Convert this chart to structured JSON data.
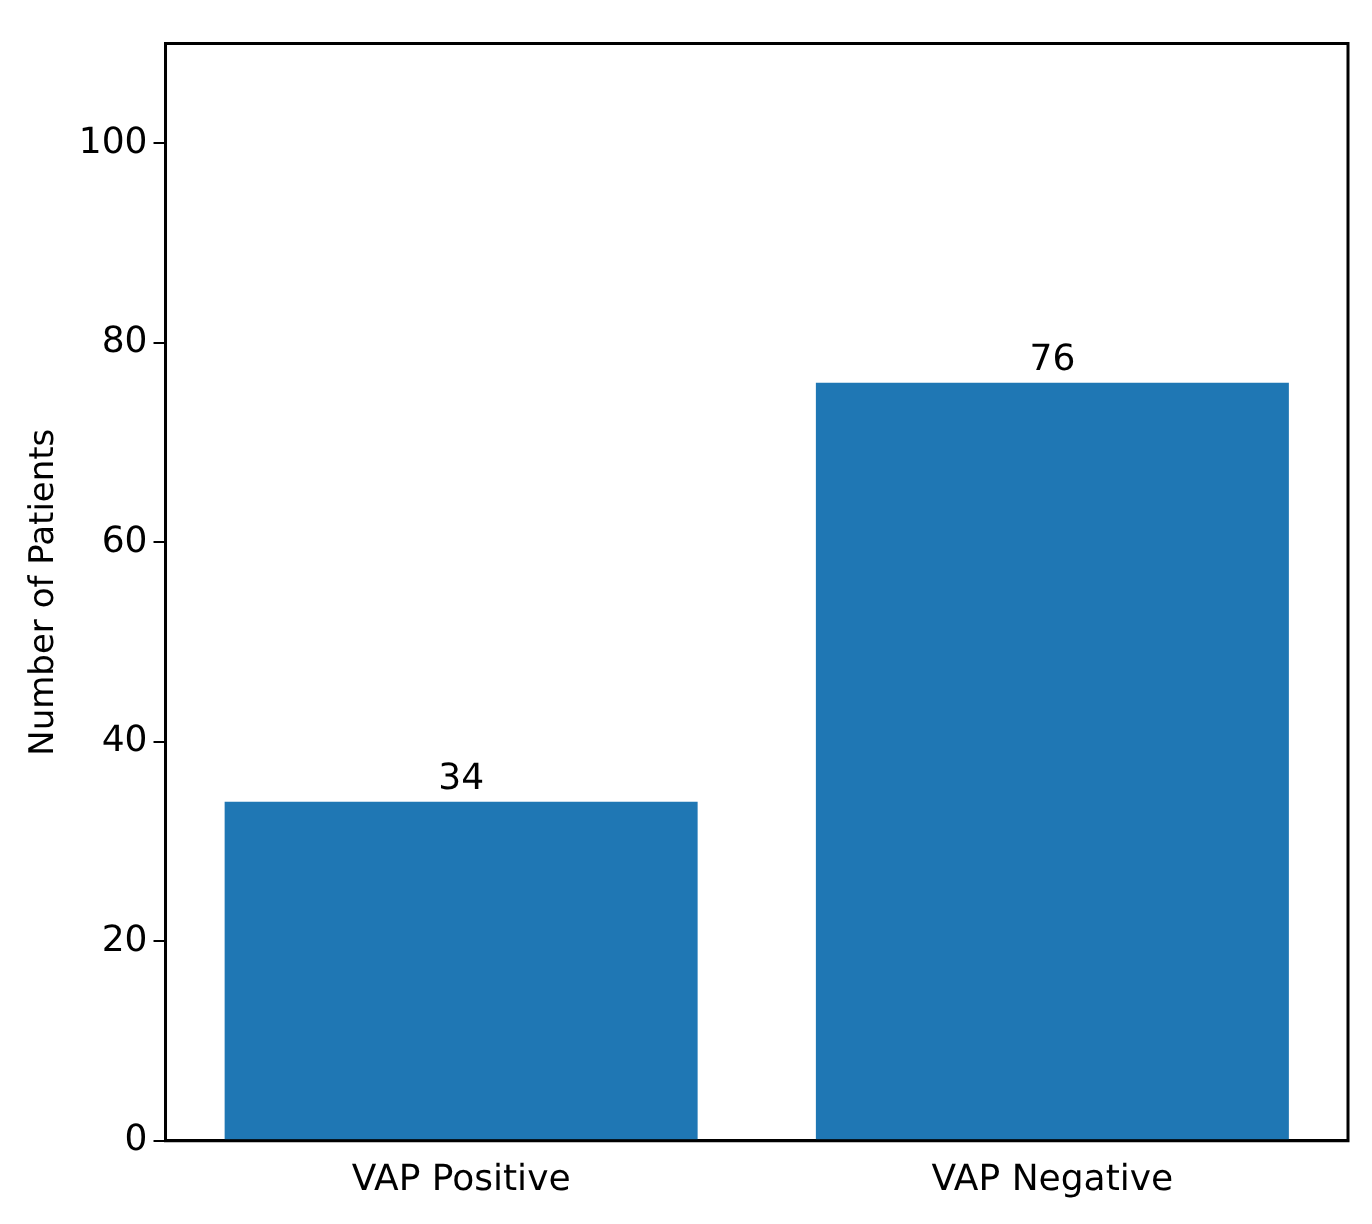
{
  "chart_data": {
    "type": "bar",
    "ylabel": "Number of Patients",
    "categories": [
      "VAP Positive",
      "VAP Negative"
    ],
    "values": [
      34,
      76
    ],
    "color": "#1f77b4",
    "ylim": [
      0,
      110
    ],
    "yticks": [
      0,
      20,
      40,
      60,
      80,
      100
    ],
    "grid": false,
    "legend": false,
    "data_labels": true
  }
}
